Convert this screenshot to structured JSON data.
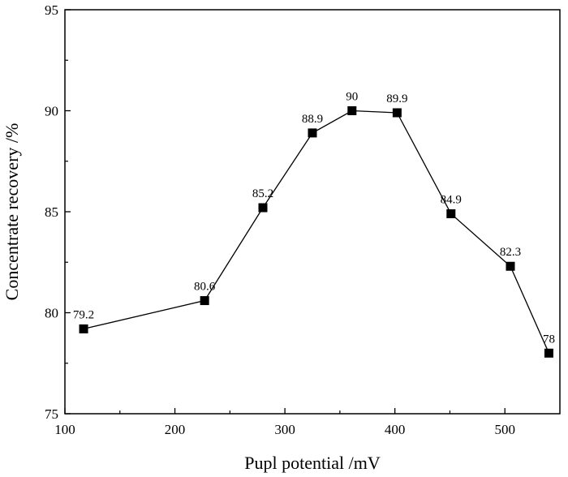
{
  "chart_data": {
    "type": "line",
    "title": "",
    "xlabel": "Pupl potential /mV",
    "ylabel": "Concentrate recovery /%",
    "xlim": [
      100,
      550
    ],
    "ylim": [
      75,
      95
    ],
    "xticks": [
      100,
      200,
      300,
      400,
      500
    ],
    "yticks": [
      75,
      80,
      85,
      90,
      95
    ],
    "grid": false,
    "marker": "square",
    "series": [
      {
        "name": "Concentrate recovery",
        "x": [
          117,
          227,
          280,
          325,
          361,
          402,
          451,
          505,
          540
        ],
        "y": [
          79.2,
          80.6,
          85.2,
          88.9,
          90,
          89.9,
          84.9,
          82.3,
          78
        ],
        "labels": [
          "79.2",
          "80.6",
          "85.2",
          "88.9",
          "90",
          "89.9",
          "84.9",
          "82.3",
          "78"
        ]
      }
    ]
  }
}
